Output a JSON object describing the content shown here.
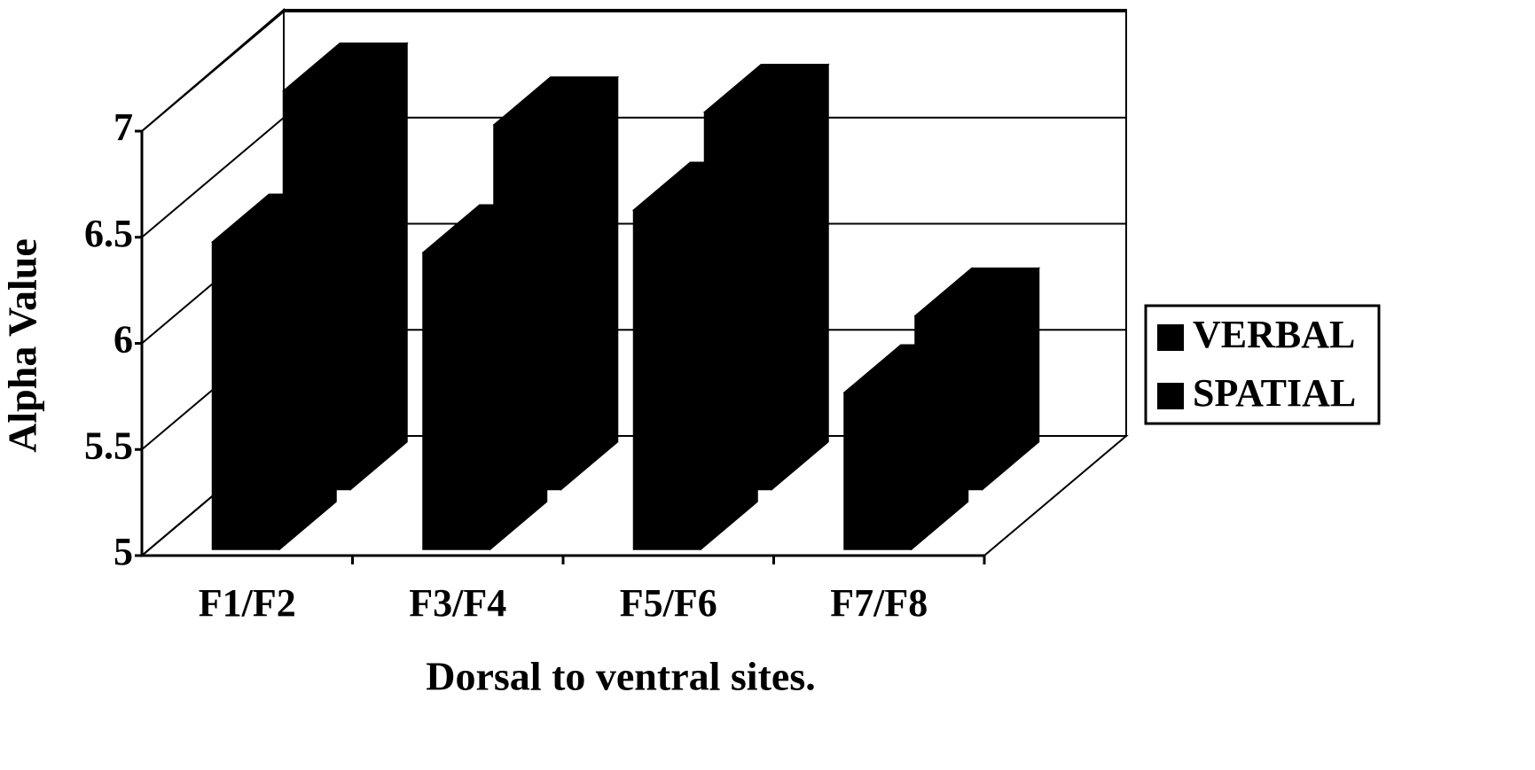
{
  "chart_data": {
    "type": "bar3d",
    "x_label": "Dorsal to ventral sites.",
    "y_label": "Alpha Value",
    "categories": [
      "F1/F2",
      "F3/F4",
      "F5/F6",
      "F7/F8"
    ],
    "series": [
      {
        "name": "VERBAL",
        "color": "#000000",
        "values": [
          6.45,
          6.4,
          6.6,
          5.74
        ]
      },
      {
        "name": "SPATIAL",
        "color": "#000000",
        "values": [
          6.88,
          6.72,
          6.78,
          5.82
        ]
      }
    ],
    "ylim": [
      5,
      7
    ],
    "yticks": [
      5,
      5.5,
      6,
      6.5,
      7
    ],
    "grid": true
  }
}
